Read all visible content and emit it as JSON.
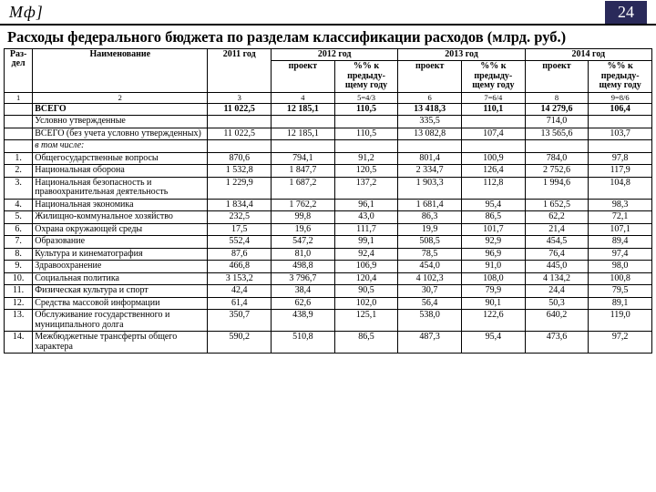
{
  "header": {
    "logo": "Мф]",
    "page": "24"
  },
  "title": "Расходы федерального бюджета по разделам классификации расходов (млрд. руб.)",
  "thead": {
    "section": "Раз-дел",
    "name": "Наименование",
    "y2011": "2011 год",
    "y2012": "2012 год",
    "y2013": "2013 год",
    "y2014": "2014 год",
    "proj": "проект",
    "pct": "%% к предыду-щему году"
  },
  "formula": [
    "1",
    "2",
    "3",
    "4",
    "5=4/3",
    "6",
    "7=6/4",
    "8",
    "9=8/6"
  ],
  "rows": [
    {
      "idx": "",
      "name": "ВСЕГО",
      "bold": true,
      "v": [
        "11 022,5",
        "12 185,1",
        "110,5",
        "13 418,3",
        "110,1",
        "14 279,6",
        "106,4"
      ]
    },
    {
      "idx": "",
      "name": "Условно утвержденные",
      "v": [
        "",
        "",
        "",
        "335,5",
        "",
        "714,0",
        ""
      ]
    },
    {
      "idx": "",
      "name": "ВСЕГО (без учета условно утвержденных)",
      "v": [
        "11 022,5",
        "12 185,1",
        "110,5",
        "13 082,8",
        "107,4",
        "13 565,6",
        "103,7"
      ]
    },
    {
      "idx": "",
      "name": "в том числе:",
      "ital": true,
      "v": [
        "",
        "",
        "",
        "",
        "",
        "",
        ""
      ]
    },
    {
      "idx": "1.",
      "name": "Общегосударственные вопросы",
      "v": [
        "870,6",
        "794,1",
        "91,2",
        "801,4",
        "100,9",
        "784,0",
        "97,8"
      ]
    },
    {
      "idx": "2.",
      "name": "Национальная оборона",
      "v": [
        "1 532,8",
        "1 847,7",
        "120,5",
        "2 334,7",
        "126,4",
        "2 752,6",
        "117,9"
      ]
    },
    {
      "idx": "3.",
      "name": "Национальная безопасность и правоохранительная деятельность",
      "v": [
        "1 229,9",
        "1 687,2",
        "137,2",
        "1 903,3",
        "112,8",
        "1 994,6",
        "104,8"
      ]
    },
    {
      "idx": "4.",
      "name": "Национальная экономика",
      "v": [
        "1 834,4",
        "1 762,2",
        "96,1",
        "1 681,4",
        "95,4",
        "1 652,5",
        "98,3"
      ]
    },
    {
      "idx": "5.",
      "name": "Жилищно-коммунальное хозяйство",
      "v": [
        "232,5",
        "99,8",
        "43,0",
        "86,3",
        "86,5",
        "62,2",
        "72,1"
      ]
    },
    {
      "idx": "6.",
      "name": "Охрана окружающей среды",
      "v": [
        "17,5",
        "19,6",
        "111,7",
        "19,9",
        "101,7",
        "21,4",
        "107,1"
      ]
    },
    {
      "idx": "7.",
      "name": "Образование",
      "v": [
        "552,4",
        "547,2",
        "99,1",
        "508,5",
        "92,9",
        "454,5",
        "89,4"
      ]
    },
    {
      "idx": "8.",
      "name": "Культура и кинематография",
      "v": [
        "87,6",
        "81,0",
        "92,4",
        "78,5",
        "96,9",
        "76,4",
        "97,4"
      ]
    },
    {
      "idx": "9.",
      "name": "Здравоохранение",
      "v": [
        "466,8",
        "498,8",
        "106,9",
        "454,0",
        "91,0",
        "445,0",
        "98,0"
      ]
    },
    {
      "idx": "10.",
      "name": "Социальная политика",
      "v": [
        "3 153,2",
        "3 796,7",
        "120,4",
        "4 102,3",
        "108,0",
        "4 134,2",
        "100,8"
      ]
    },
    {
      "idx": "11.",
      "name": "Физическая культура и спорт",
      "v": [
        "42,4",
        "38,4",
        "90,5",
        "30,7",
        "79,9",
        "24,4",
        "79,5"
      ]
    },
    {
      "idx": "12.",
      "name": "Средства массовой информации",
      "v": [
        "61,4",
        "62,6",
        "102,0",
        "56,4",
        "90,1",
        "50,3",
        "89,1"
      ]
    },
    {
      "idx": "13.",
      "name": "Обслуживание государственного и муниципального долга",
      "v": [
        "350,7",
        "438,9",
        "125,1",
        "538,0",
        "122,6",
        "640,2",
        "119,0"
      ]
    },
    {
      "idx": "14.",
      "name": "Межбюджетные трансферты общего характера",
      "v": [
        "590,2",
        "510,8",
        "86,5",
        "487,3",
        "95,4",
        "473,6",
        "97,2"
      ]
    }
  ]
}
